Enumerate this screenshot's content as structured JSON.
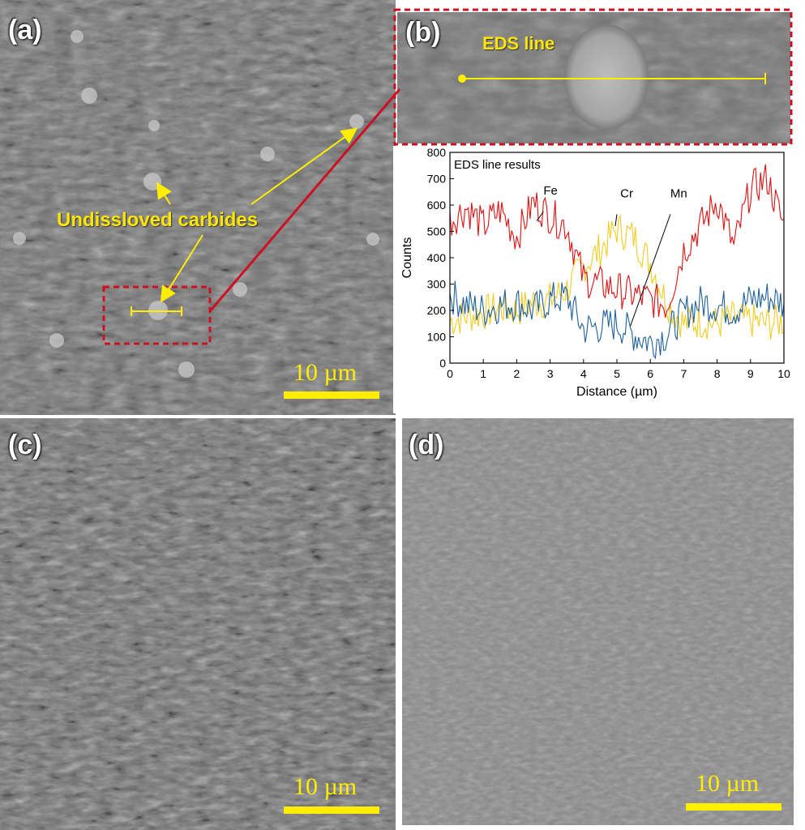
{
  "panels": {
    "a": {
      "label": "(a)",
      "scale": "10 µm",
      "annotation": "Undissloved carbides"
    },
    "b": {
      "label": "(b)",
      "annotation": "EDS line"
    },
    "c": {
      "label": "(c)",
      "scale": "10 µm"
    },
    "d": {
      "label": "(d)",
      "scale": "10 µm"
    }
  },
  "colors": {
    "accent": "#ffee00",
    "callout": "#cc1122",
    "Fe": "#dd1111",
    "Cr": "#f2cc22",
    "Mn": "#1f5f99"
  },
  "chart_data": {
    "type": "line",
    "title": "EDS line results",
    "xlabel": "Distance (µm)",
    "ylabel": "Counts",
    "xlim": [
      0,
      10
    ],
    "ylim": [
      0,
      800
    ],
    "xticks": [
      0,
      1,
      2,
      3,
      4,
      5,
      6,
      7,
      8,
      9,
      10
    ],
    "yticks": [
      0,
      100,
      200,
      300,
      400,
      500,
      600,
      700,
      800
    ],
    "x": [
      0,
      0.5,
      1,
      1.5,
      2,
      2.5,
      3,
      3.5,
      4,
      4.5,
      5,
      5.5,
      6,
      6.5,
      7,
      7.5,
      8,
      8.5,
      9,
      9.5,
      10
    ],
    "series": [
      {
        "name": "Fe",
        "values": [
          540,
          590,
          520,
          580,
          480,
          610,
          560,
          520,
          320,
          300,
          280,
          260,
          240,
          220,
          430,
          520,
          620,
          440,
          660,
          700,
          520
        ]
      },
      {
        "name": "Cr",
        "values": [
          160,
          180,
          190,
          210,
          200,
          230,
          240,
          280,
          370,
          430,
          510,
          480,
          380,
          230,
          150,
          160,
          150,
          170,
          160,
          150,
          160
        ]
      },
      {
        "name": "Mn",
        "values": [
          260,
          220,
          200,
          220,
          230,
          200,
          240,
          250,
          130,
          140,
          150,
          110,
          80,
          110,
          190,
          230,
          220,
          200,
          240,
          250,
          230
        ]
      }
    ],
    "annotations": [
      {
        "text": "Fe",
        "x": 2.8,
        "y": 600
      },
      {
        "text": "Cr",
        "x": 5.1,
        "y": 590
      },
      {
        "text": "Mn",
        "x": 6.6,
        "y": 590
      }
    ],
    "grid": false,
    "legend": "none"
  }
}
